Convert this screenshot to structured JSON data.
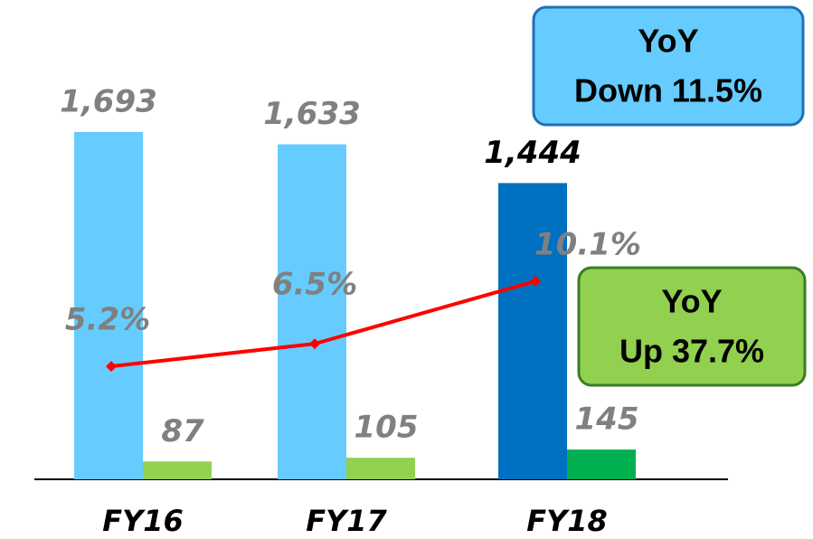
{
  "chart_data": {
    "type": "bar",
    "categories": [
      "FY16",
      "FY17",
      "FY18"
    ],
    "series": [
      {
        "colors": [
          "#66ccff",
          "#66ccff",
          "#0070c0"
        ],
        "values": [
          1693,
          1633,
          1444
        ],
        "value_labels": [
          "1,693",
          "1,633",
          "1,444"
        ],
        "label_colors": [
          "#808080",
          "#808080",
          "#000000"
        ]
      },
      {
        "colors": [
          "#92d050",
          "#92d050",
          "#00b050"
        ],
        "values": [
          87,
          105,
          145
        ],
        "label_colors": [
          "#808080",
          "#808080",
          "#808080"
        ]
      },
      {
        "type": "line",
        "axis": "y2",
        "color": "#ff0000",
        "values": [
          5.2,
          6.5,
          10.1
        ],
        "value_labels": [
          "5.2%",
          "6.5%",
          "10.1%"
        ],
        "label_color": "#808080"
      }
    ],
    "ylim": [
      0,
      2160
    ],
    "y2lim": [
      -1.3,
      24.2
    ],
    "annotations": [
      {
        "lines": [
          "YoY",
          "Down 11.5%"
        ],
        "fill": "#66ccff",
        "stroke": "#1f6fb5"
      },
      {
        "lines": [
          "YoY",
          "Up 37.7%"
        ],
        "fill": "#92d050",
        "stroke": "#3a7d22"
      }
    ]
  }
}
